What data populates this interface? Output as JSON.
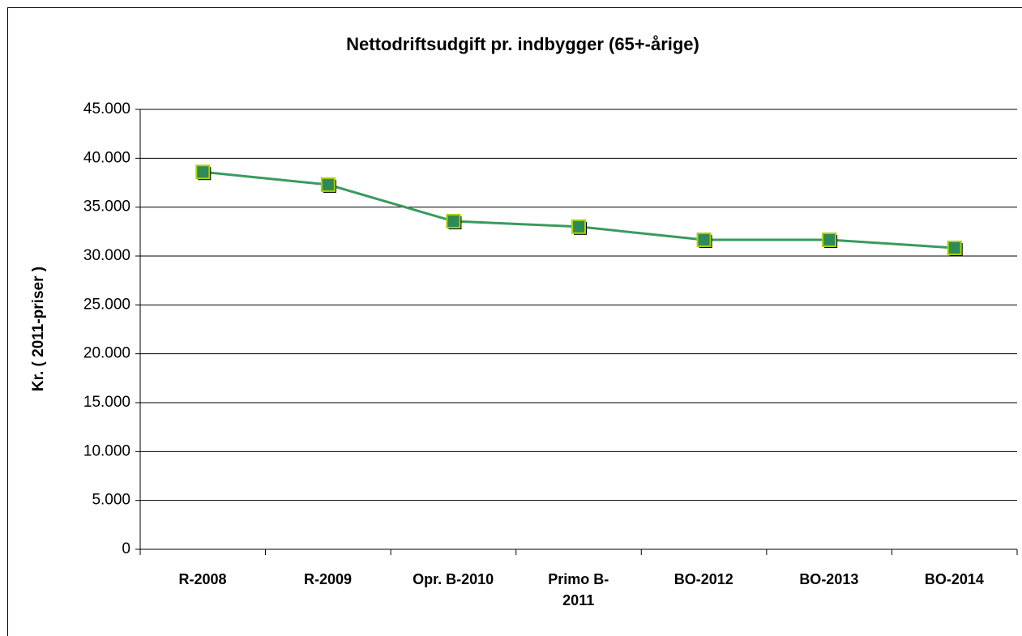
{
  "chart_data": {
    "type": "line",
    "title": "Nettodriftsudgift pr. indbygger (65+-årige)",
    "y_label": "Kr. ( 2011-priser )",
    "categories": [
      "R-2008",
      "R-2009",
      "Opr. B-2010",
      "Primo B-\n2011",
      "BO-2012",
      "BO-2013",
      "BO-2014"
    ],
    "series": [
      {
        "name": "Nettodriftsudgift",
        "color": "#3a9a5e",
        "marker_color": "#2e8b57",
        "marker_edge": "#a8d400",
        "values": [
          38600,
          37300,
          33560,
          33000,
          31660,
          31660,
          30830
        ]
      }
    ],
    "ylim": [
      0,
      45000
    ],
    "yticks": [
      0,
      {
        "value": 5000,
        "label": "5.000"
      },
      {
        "value": 10000,
        "label": "10.000"
      },
      {
        "value": 15000,
        "label": "15.000"
      },
      {
        "value": 20000,
        "label": "20.000"
      },
      {
        "value": 25000,
        "label": "25.000"
      },
      {
        "value": 30000,
        "label": "30.000"
      },
      {
        "value": 35000,
        "label": "35.000"
      },
      {
        "value": 40000,
        "label": "40.000"
      },
      {
        "value": 45000,
        "label": "45.000"
      }
    ],
    "grid": true
  }
}
